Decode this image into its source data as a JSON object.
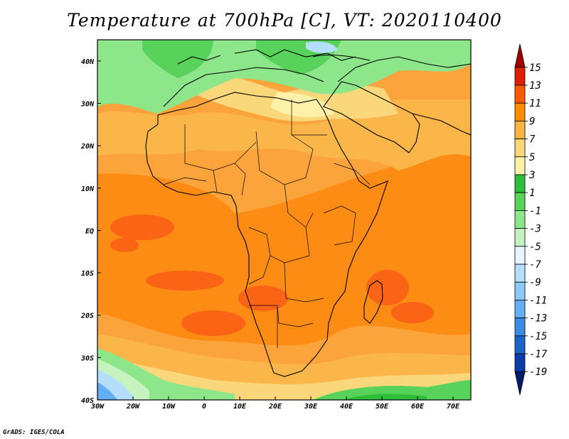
{
  "title": "Temperature at 700hPa [C], VT: 2020110400",
  "credit": "GrADS: IGES/COLA",
  "map": {
    "lon_range": [
      -30,
      75
    ],
    "lat_range": [
      -40,
      45
    ],
    "lon_ticks": [
      {
        "value": -30,
        "label": "30W"
      },
      {
        "value": -20,
        "label": "20W"
      },
      {
        "value": -10,
        "label": "10W"
      },
      {
        "value": 0,
        "label": "0"
      },
      {
        "value": 10,
        "label": "10E"
      },
      {
        "value": 20,
        "label": "20E"
      },
      {
        "value": 30,
        "label": "30E"
      },
      {
        "value": 40,
        "label": "40E"
      },
      {
        "value": 50,
        "label": "50E"
      },
      {
        "value": 60,
        "label": "60E"
      },
      {
        "value": 70,
        "label": "70E"
      }
    ],
    "lat_ticks": [
      {
        "value": 40,
        "label": "40N"
      },
      {
        "value": 30,
        "label": "30N"
      },
      {
        "value": 20,
        "label": "20N"
      },
      {
        "value": 10,
        "label": "10N"
      },
      {
        "value": 0,
        "label": "EQ"
      },
      {
        "value": -10,
        "label": "10S"
      },
      {
        "value": -20,
        "label": "20S"
      },
      {
        "value": -30,
        "label": "30S"
      },
      {
        "value": -40,
        "label": "40S"
      }
    ]
  },
  "colorbar": {
    "levels": [
      "15",
      "13",
      "11",
      "9",
      "7",
      "5",
      "3",
      "1",
      "-1",
      "-3",
      "-5",
      "-7",
      "-9",
      "-11",
      "-13",
      "-15",
      "-17",
      "-19"
    ],
    "colors": [
      "#a00000",
      "#e01e00",
      "#ff5a00",
      "#ff8c00",
      "#f9b441",
      "#fad77a",
      "#fdf0a8",
      "#2fbe3c",
      "#58d25a",
      "#8de68a",
      "#c6f2c0",
      "#e6f6fc",
      "#b4defc",
      "#8ec8f8",
      "#64aef4",
      "#3c8ce6",
      "#1e64c8",
      "#0a3caa",
      "#051c6e"
    ]
  }
}
